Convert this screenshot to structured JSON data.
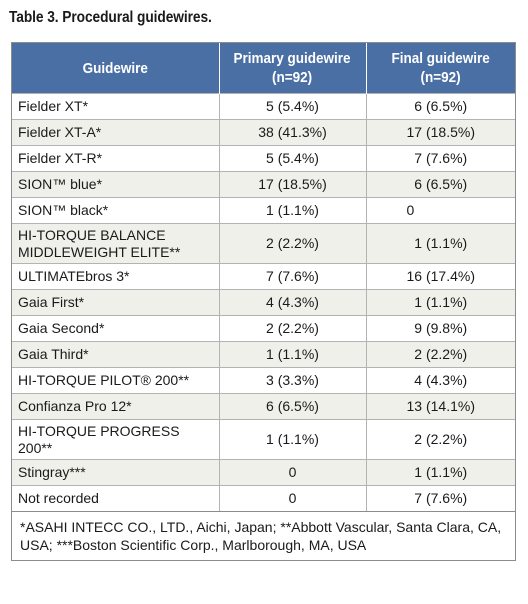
{
  "title": "Table 3. Procedural guidewires.",
  "header": {
    "col1": "Guidewire",
    "col2_line1": "Primary guidewire",
    "col2_line2": "(n=92)",
    "col3_line1": "Final guidewire",
    "col3_line2": "(n=92)"
  },
  "rows": [
    {
      "name": "Fielder XT*",
      "name2": "",
      "primary": "5 (5.4%)",
      "final": "6 (6.5%)"
    },
    {
      "name": "Fielder XT-A*",
      "name2": "",
      "primary": "38 (41.3%)",
      "final": "17 (18.5%)"
    },
    {
      "name": "Fielder XT-R*",
      "name2": "",
      "primary": "5 (5.4%)",
      "final": "7 (7.6%)"
    },
    {
      "name": "SION™ blue*",
      "name2": "",
      "primary": "17 (18.5%)",
      "final": "6 (6.5%)"
    },
    {
      "name": "SION™ black*",
      "name2": "",
      "primary": "1 (1.1%)",
      "final": "0"
    },
    {
      "name": "HI-TORQUE BALANCE",
      "name2": "MIDDLEWEIGHT ELITE**",
      "primary": "2 (2.2%)",
      "final": "1 (1.1%)"
    },
    {
      "name": "ULTIMATEbros 3*",
      "name2": "",
      "primary": "7 (7.6%)",
      "final": "16 (17.4%)"
    },
    {
      "name": "Gaia First*",
      "name2": "",
      "primary": "4 (4.3%)",
      "final": "1 (1.1%)"
    },
    {
      "name": "Gaia Second*",
      "name2": "",
      "primary": "2 (2.2%)",
      "final": "9 (9.8%)"
    },
    {
      "name": "Gaia Third*",
      "name2": "",
      "primary": "1 (1.1%)",
      "final": "2 (2.2%)"
    },
    {
      "name": "HI-TORQUE PILOT® 200**",
      "name2": "",
      "primary": "3 (3.3%)",
      "final": "4 (4.3%)"
    },
    {
      "name": "Confianza Pro 12*",
      "name2": "",
      "primary": "6 (6.5%)",
      "final": "13 (14.1%)"
    },
    {
      "name": "HI-TORQUE PROGRESS",
      "name2": "200**",
      "primary": "1 (1.1%)",
      "final": "2 (2.2%)"
    },
    {
      "name": "Stingray***",
      "name2": "",
      "primary": "0",
      "final": "1 (1.1%)"
    },
    {
      "name": "Not recorded",
      "name2": "",
      "primary": "0",
      "final": "7 (7.6%)"
    }
  ],
  "footnote": "*ASAHI INTECC CO., LTD., Aichi, Japan; **Abbott Vascular, Santa Clara, CA, USA; ***Boston Scientific Corp., Marlborough, MA, USA"
}
